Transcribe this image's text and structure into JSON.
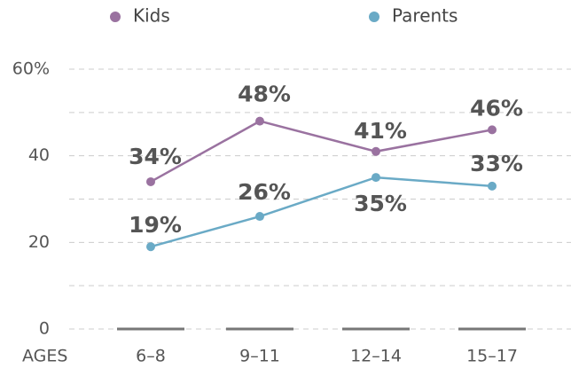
{
  "chart_data": {
    "type": "line",
    "xlabel": "AGES",
    "categories": [
      "6–8",
      "9–11",
      "12–14",
      "15–17"
    ],
    "series": [
      {
        "name": "Kids",
        "color": "#9a72a0",
        "values": [
          34,
          48,
          41,
          46
        ],
        "value_labels": [
          "34%",
          "48%",
          "41%",
          "46%"
        ]
      },
      {
        "name": "Parents",
        "color": "#6aaac6",
        "values": [
          19,
          26,
          35,
          33
        ],
        "value_labels": [
          "19%",
          "26%",
          "35%",
          "33%"
        ]
      }
    ],
    "ylim": [
      0,
      60
    ],
    "yticks": [
      0,
      20,
      40,
      {
        "value": 60,
        "label": "60%"
      }
    ],
    "yminor": [
      10,
      30,
      50
    ],
    "grid": true
  }
}
